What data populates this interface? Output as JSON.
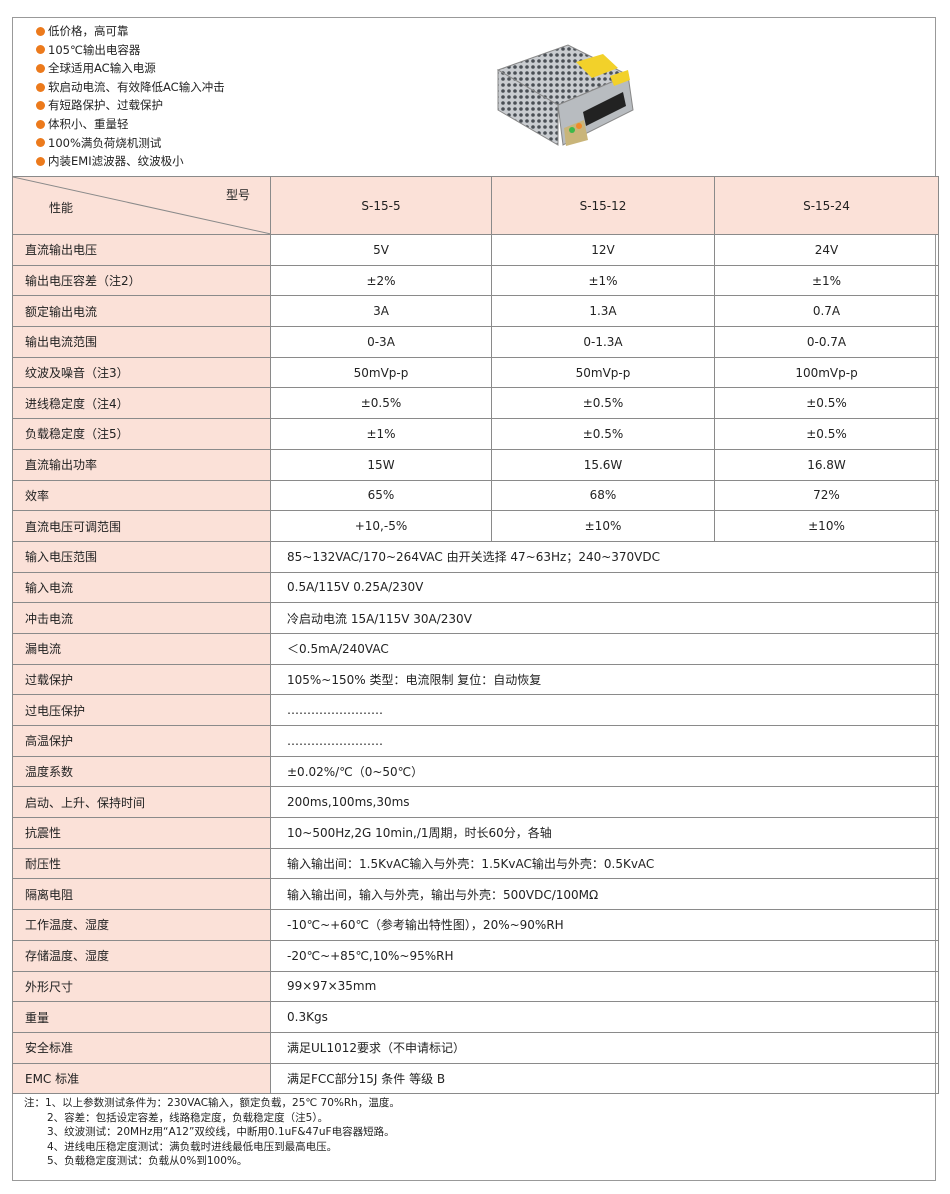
{
  "features": [
    "低价格，高可靠",
    "105℃输出电容器",
    "全球适用AC输入电源",
    "软启动电流、有效降低AC输入冲击",
    "有短路保护、过载保护",
    "体积小、重量轻",
    "100%满负荷烧机测试",
    "内装EMI滤波器、纹波极小"
  ],
  "accent_color": "#ec7a1c",
  "label_bg_color": "#fbe1d8",
  "header": {
    "model_label": "型号",
    "perf_label": "性能",
    "models": [
      "S-15-5",
      "S-15-12",
      "S-15-24"
    ]
  },
  "spec_rows": [
    {
      "label": "直流输出电压",
      "values": [
        "5V",
        "12V",
        "24V"
      ]
    },
    {
      "label": "输出电压容差（注2）",
      "values": [
        "±2%",
        "±1%",
        "±1%"
      ]
    },
    {
      "label": "额定输出电流",
      "values": [
        "3A",
        "1.3A",
        "0.7A"
      ]
    },
    {
      "label": "输出电流范围",
      "values": [
        "0-3A",
        "0-1.3A",
        "0-0.7A"
      ]
    },
    {
      "label": "纹波及噪音（注3）",
      "values": [
        "50mVp-p",
        "50mVp-p",
        "100mVp-p"
      ]
    },
    {
      "label": "进线稳定度（注4）",
      "values": [
        "±0.5%",
        "±0.5%",
        "±0.5%"
      ]
    },
    {
      "label": "负载稳定度（注5）",
      "values": [
        "±1%",
        "±0.5%",
        "±0.5%"
      ]
    },
    {
      "label": "直流输出功率",
      "values": [
        "15W",
        "15.6W",
        "16.8W"
      ]
    },
    {
      "label": "效率",
      "values": [
        "65%",
        "68%",
        "72%"
      ]
    },
    {
      "label": "直流电压可调范围",
      "values": [
        "+10,-5%",
        "±10%",
        "±10%"
      ]
    }
  ],
  "common_rows": [
    {
      "label": "输入电压范围",
      "value": "85~132VAC/170~264VAC 由开关选择 47~63Hz；240~370VDC"
    },
    {
      "label": "输入电流",
      "value": "0.5A/115V  0.25A/230V"
    },
    {
      "label": "冲击电流",
      "value": "冷启动电流 15A/115V 30A/230V"
    },
    {
      "label": "漏电流",
      "value": "＜0.5mA/240VAC"
    },
    {
      "label": "过载保护",
      "value": "105%~150% 类型：电流限制 复位：自动恢复"
    },
    {
      "label": "过电压保护",
      "value": "……………………"
    },
    {
      "label": "高温保护",
      "value": "……………………"
    },
    {
      "label": "温度系数",
      "value": "±0.02%/℃（0~50℃）"
    },
    {
      "label": "启动、上升、保持时间",
      "value": "200ms,100ms,30ms"
    },
    {
      "label": "抗震性",
      "value": "10~500Hz,2G 10min,/1周期，时长60分，各轴"
    },
    {
      "label": "耐压性",
      "value": "输入输出间：1.5KvAC输入与外壳：1.5KvAC输出与外壳：0.5KvAC"
    },
    {
      "label": "隔离电阻",
      "value": "输入输出间，输入与外壳，输出与外壳：500VDC/100MΩ"
    },
    {
      "label": "工作温度、湿度",
      "value": "-10℃~+60℃（参考输出特性图），20%~90%RH"
    },
    {
      "label": "存储温度、湿度",
      "value": "-20℃~+85℃,10%~95%RH"
    },
    {
      "label": "外形尺寸",
      "value": "99×97×35mm"
    },
    {
      "label": "重量",
      "value": "0.3Kgs"
    },
    {
      "label": "安全标准",
      "value": "满足UL1012要求（不申请标记）"
    },
    {
      "label": "EMC 标准",
      "value": "满足FCC部分15J 条件 等级 B"
    }
  ],
  "notes": [
    "注：1、以上参数测试条件为：230VAC输入，额定负载，25℃ 70%Rh，温度。",
    "2、容差：包括设定容差，线路稳定度，负载稳定度（注5）。",
    "3、纹波测试：20MHz用“A12”双绞线，中断用0.1uF&47uF电容器短路。",
    "4、进线电压稳定度测试：满负载时进线最低电压到最高电压。",
    "5、负载稳定度测试：负载从0%到100%。"
  ]
}
